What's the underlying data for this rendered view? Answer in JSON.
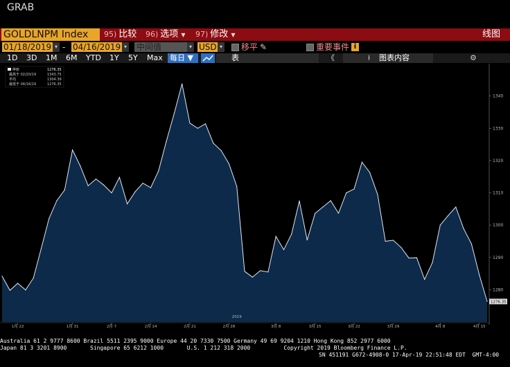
{
  "window": {
    "title": "GRAB"
  },
  "toolbar": {
    "ticker": "GOLDLNPM Index",
    "menus": [
      {
        "num": "95)",
        "label": "比较"
      },
      {
        "num": "96)",
        "label": "选项"
      },
      {
        "num": "97)",
        "label": "修改"
      }
    ],
    "view_label": "线图"
  },
  "settings": {
    "start_date": "01/18/2019",
    "end_date": "04/16/2019",
    "field": "中间值",
    "currency": "USD",
    "moving_avg_label": "移平",
    "events_label": "重要事件",
    "info_icon": "i"
  },
  "ranges": {
    "items": [
      "1D",
      "3D",
      "1M",
      "6M",
      "YTD",
      "1Y",
      "5Y",
      "Max"
    ],
    "frequency": "每日",
    "table_label": "表",
    "chart_content_label": "图表内容"
  },
  "legend": {
    "title": "中价",
    "rows": [
      {
        "label": "中价",
        "value": "1276.35"
      },
      {
        "label": "最高于 02/20/19",
        "value": "1343.75"
      },
      {
        "label": "平均",
        "value": "1304.39"
      },
      {
        "label": "最低于 04/16/19",
        "value": "1276.35"
      }
    ]
  },
  "chart_data": {
    "type": "area",
    "series": [
      {
        "values": [
          1284.2,
          1279.8,
          1282.0,
          1279.9,
          1283.6,
          1292.8,
          1302.0,
          1307.6,
          1310.9,
          1323.3,
          1318.3,
          1312.2,
          1314.3,
          1312.4,
          1310.0,
          1314.8,
          1306.6,
          1310.3,
          1313.0,
          1311.6,
          1316.8,
          1326.0,
          1334.6,
          1343.75,
          1331.6,
          1330.0,
          1331.4,
          1325.4,
          1323.1,
          1319.0,
          1312.0,
          1285.7,
          1283.9,
          1285.9,
          1285.5,
          1296.5,
          1292.4,
          1297.2,
          1307.5,
          1295.4,
          1303.6,
          1305.6,
          1307.6,
          1303.7,
          1310.0,
          1311.2,
          1319.5,
          1316.3,
          1309.5,
          1295.0,
          1295.3,
          1293.1,
          1289.8,
          1289.9,
          1283.2,
          1288.4,
          1300.0,
          1302.9,
          1305.6,
          1298.9,
          1294.2,
          1284.6,
          1276.35
        ]
      }
    ],
    "ylim": [
      1270,
      1350
    ],
    "yticks": [
      1280,
      1290,
      1300,
      1310,
      1320,
      1330,
      1340
    ],
    "last_value_label": "1276.35",
    "xticks": [
      {
        "label": "1月 22",
        "index": 2
      },
      {
        "label": "1月 31",
        "index": 9
      },
      {
        "label": "2月 7",
        "index": 14
      },
      {
        "label": "2月 14",
        "index": 19
      },
      {
        "label": "2月 21",
        "index": 24
      },
      {
        "label": "2月 28",
        "index": 29
      },
      {
        "label": "3月 8",
        "index": 35
      },
      {
        "label": "3月 15",
        "index": 40
      },
      {
        "label": "3月 22",
        "index": 45
      },
      {
        "label": "3月 29",
        "index": 50
      },
      {
        "label": "4月 8",
        "index": 56
      },
      {
        "label": "4月 15",
        "index": 61
      }
    ],
    "year_label": "2019",
    "grid": false,
    "colors": {
      "fill": "#0d2a4a",
      "line": "#dfe8f2"
    }
  },
  "footer": {
    "line1": "Australia 61 2 9777 8600 Brazil 5511 2395 9000 Europe 44 20 7330 7500 Germany 49 69 9204 1210 Hong Kong 852 2977 6000",
    "line2": "Japan 81 3 3201 8900       Singapore 65 6212 1000       U.S. 1 212 318 2000          Copyright 2019 Bloomberg Finance L.P.",
    "line3": "SN 451191 G672-4908-0 17-Apr-19 22:51:48 EDT  GMT-4:00"
  }
}
